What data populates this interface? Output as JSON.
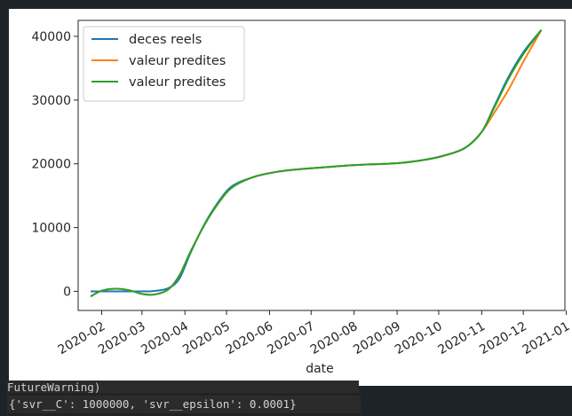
{
  "output": {
    "warning_text": "FutureWarning)",
    "result_text": "{'svr__C': 1000000, 'svr__epsilon': 0.0001}"
  },
  "chart_data": {
    "type": "line",
    "xlabel": "date",
    "ylabel": "",
    "title": "",
    "legend_position": "top-left",
    "grid": false,
    "xlim": [
      "2020-01-15",
      "2020-12-31"
    ],
    "ylim": [
      -3000,
      42500
    ],
    "yticks": [
      0,
      10000,
      20000,
      30000,
      40000
    ],
    "xticks": [
      "2020-02",
      "2020-03",
      "2020-04",
      "2020-05",
      "2020-06",
      "2020-07",
      "2020-08",
      "2020-09",
      "2020-10",
      "2020-11",
      "2020-12",
      "2021-01"
    ],
    "series": [
      {
        "name": "deces reels",
        "color": "#1f77b4",
        "x": [
          "2020-01-24",
          "2020-02-15",
          "2020-03-01",
          "2020-03-10",
          "2020-03-20",
          "2020-03-28",
          "2020-04-05",
          "2020-04-15",
          "2020-04-25",
          "2020-05-05",
          "2020-05-20",
          "2020-06-05",
          "2020-06-20",
          "2020-07-10",
          "2020-08-01",
          "2020-09-01",
          "2020-09-20",
          "2020-10-05",
          "2020-10-20",
          "2020-11-01",
          "2020-11-10",
          "2020-11-20",
          "2020-12-01",
          "2020-12-14"
        ],
        "y": [
          0,
          0,
          0,
          50,
          500,
          2000,
          6000,
          10500,
          14000,
          16500,
          17900,
          18700,
          19100,
          19450,
          19800,
          20100,
          20600,
          21300,
          22500,
          25000,
          29000,
          33500,
          37500,
          41000
        ]
      },
      {
        "name": "valeur predites",
        "color": "#ff7f0e",
        "x": [
          "2020-01-24",
          "2020-02-01",
          "2020-02-10",
          "2020-02-20",
          "2020-03-01",
          "2020-03-10",
          "2020-03-20",
          "2020-03-28",
          "2020-04-05",
          "2020-04-15",
          "2020-04-25",
          "2020-05-05",
          "2020-05-20",
          "2020-06-05",
          "2020-06-20",
          "2020-07-10",
          "2020-08-01",
          "2020-09-01",
          "2020-09-20",
          "2020-10-05",
          "2020-10-20",
          "2020-11-01",
          "2020-11-10",
          "2020-11-20",
          "2020-12-01",
          "2020-12-14"
        ],
        "y": [
          -800,
          100,
          400,
          200,
          -400,
          -500,
          300,
          2500,
          6200,
          10400,
          13800,
          16300,
          17900,
          18700,
          19100,
          19450,
          19800,
          20100,
          20600,
          21300,
          22500,
          25000,
          28000,
          31500,
          36000,
          41000
        ]
      },
      {
        "name": "valeur predites",
        "color": "#2ca02c",
        "x": [
          "2020-01-24",
          "2020-02-01",
          "2020-02-10",
          "2020-02-20",
          "2020-03-01",
          "2020-03-10",
          "2020-03-20",
          "2020-03-28",
          "2020-04-05",
          "2020-04-15",
          "2020-04-25",
          "2020-05-05",
          "2020-05-20",
          "2020-06-05",
          "2020-06-20",
          "2020-07-10",
          "2020-08-01",
          "2020-09-01",
          "2020-09-20",
          "2020-10-05",
          "2020-10-20",
          "2020-11-01",
          "2020-11-10",
          "2020-11-20",
          "2020-12-01",
          "2020-12-14"
        ],
        "y": [
          -800,
          100,
          400,
          200,
          -400,
          -500,
          300,
          2500,
          6200,
          10400,
          13800,
          16300,
          17900,
          18700,
          19100,
          19450,
          19800,
          20100,
          20600,
          21300,
          22500,
          25000,
          28800,
          33200,
          37200,
          41000
        ]
      }
    ]
  }
}
